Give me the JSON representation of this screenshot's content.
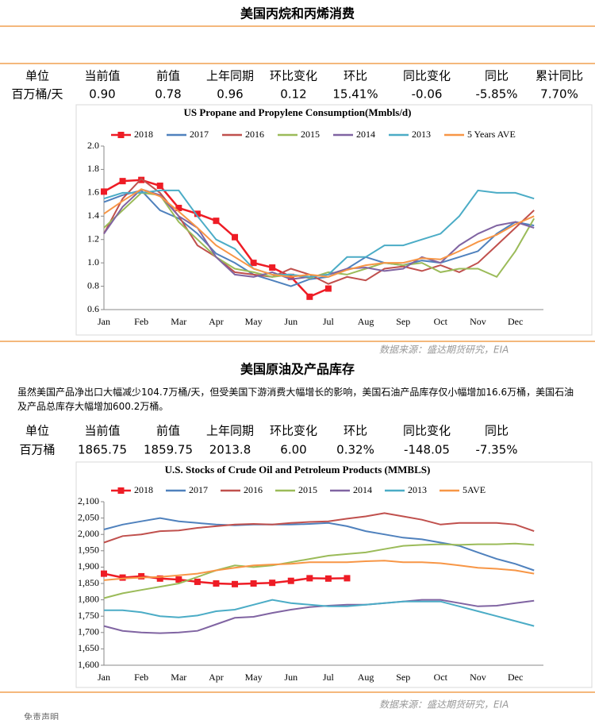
{
  "section1": {
    "title": "美国丙烷和丙烯消费",
    "table": {
      "header": [
        "单位",
        "当前值",
        "前值",
        "上年同期",
        "环比变化",
        "环比",
        "同比变化",
        "同比",
        "累计同比"
      ],
      "row": [
        "百万桶/天",
        "0.90",
        "0.78",
        "0.96",
        "0.12",
        "15.41%",
        "-0.06",
        "-5.85%",
        "7.70%"
      ]
    },
    "source": "数据来源：盛达期货研究，EIA"
  },
  "section2": {
    "title": "美国原油及产品库存",
    "text": "虽然美国产品净出口大幅减少104.7万桶/天，但受美国下游消费大幅增长的影响，美国石油产品库存仅小幅增加16.6万桶，美国石油及产品总库存大幅增加600.2万桶。",
    "table": {
      "header": [
        "单位",
        "当前值",
        "前值",
        "上年同期",
        "环比变化",
        "环比",
        "同比变化",
        "同比"
      ],
      "row": [
        "百万桶",
        "1865.75",
        "1859.75",
        "2013.8",
        "6.00",
        "0.32%",
        "-148.05",
        "-7.35%"
      ]
    },
    "source": "数据来源：盛达期货研究，EIA"
  },
  "footer": "免责声明",
  "chart_data": [
    {
      "type": "line",
      "title": "US Propane and Propylene Consumption(Mmbls/d)",
      "categories": [
        "Jan",
        null,
        "Feb",
        null,
        "Mar",
        null,
        "Apr",
        null,
        "May",
        null,
        "Jun",
        null,
        "Jul",
        null,
        "Aug",
        null,
        "Sep",
        null,
        "Oct",
        null,
        "Nov",
        null,
        "Dec",
        null
      ],
      "ylim": [
        0.6,
        2.0
      ],
      "yticks": [
        0.6,
        0.8,
        {
          "value": 1,
          "label": "1.0"
        },
        1.2,
        1.4,
        1.6,
        1.8,
        {
          "value": 2,
          "label": "2.0"
        }
      ],
      "grid": false,
      "series": [
        {
          "name": "2018",
          "color": "#ee1c25",
          "marker": "square",
          "values": [
            1.61,
            1.7,
            1.71,
            1.66,
            1.47,
            1.42,
            1.36,
            1.22,
            1.0,
            0.96,
            0.88,
            0.71,
            0.78,
            null,
            null,
            null,
            null,
            null,
            null,
            null,
            null,
            null,
            null,
            null
          ]
        },
        {
          "name": "2017",
          "color": "#4f81bd",
          "values": [
            1.52,
            1.58,
            1.62,
            1.45,
            1.38,
            1.25,
            1.08,
            1.0,
            0.9,
            0.85,
            0.8,
            0.86,
            0.88,
            0.95,
            1.05,
            1.0,
            0.98,
            1.02,
            1.0,
            1.05,
            1.1,
            1.25,
            1.35,
            1.32
          ]
        },
        {
          "name": "2016",
          "color": "#c0504d",
          "values": [
            1.25,
            1.55,
            1.72,
            1.6,
            1.4,
            1.15,
            1.05,
            0.92,
            0.9,
            0.88,
            0.95,
            0.9,
            0.82,
            0.88,
            0.85,
            0.95,
            0.97,
            0.93,
            0.98,
            0.92,
            1.0,
            1.15,
            1.3,
            1.45
          ]
        },
        {
          "name": "2015",
          "color": "#9bbb59",
          "values": [
            1.3,
            1.45,
            1.6,
            1.58,
            1.35,
            1.2,
            1.05,
            0.95,
            0.92,
            0.88,
            0.9,
            0.87,
            0.92,
            0.9,
            0.95,
            1.0,
            0.98,
            1.0,
            0.92,
            0.95,
            0.95,
            0.88,
            1.1,
            1.38
          ]
        },
        {
          "name": "2014",
          "color": "#8064a2",
          "values": [
            1.25,
            1.48,
            1.63,
            1.58,
            1.4,
            1.3,
            1.05,
            0.9,
            0.88,
            0.92,
            0.86,
            0.88,
            0.9,
            0.95,
            0.96,
            0.93,
            0.95,
            1.05,
            1.0,
            1.15,
            1.25,
            1.32,
            1.35,
            1.3
          ]
        },
        {
          "name": "2013",
          "color": "#4bacc6",
          "values": [
            1.55,
            1.6,
            1.6,
            1.62,
            1.62,
            1.4,
            1.2,
            1.12,
            0.95,
            0.9,
            0.9,
            0.88,
            0.9,
            1.05,
            1.05,
            1.15,
            1.15,
            1.2,
            1.25,
            1.4,
            1.62,
            1.6,
            1.6,
            1.55
          ]
        },
        {
          "name": "5 Years AVE",
          "color": "#f79646",
          "values": [
            1.42,
            1.53,
            1.63,
            1.57,
            1.44,
            1.3,
            1.15,
            1.05,
            0.95,
            0.9,
            0.88,
            0.9,
            0.88,
            0.94,
            0.98,
            1.0,
            1.0,
            1.04,
            1.03,
            1.1,
            1.18,
            1.24,
            1.33,
            1.4
          ]
        }
      ]
    },
    {
      "type": "line",
      "title": "U.S.  Stocks of Crude Oil and Petroleum Products  (MMBLS)",
      "categories": [
        "Jan",
        null,
        "Feb",
        null,
        "Mar",
        null,
        "Apr",
        null,
        "May",
        null,
        "Jun",
        null,
        "Jul",
        null,
        "Aug",
        null,
        "Sep",
        null,
        "Oct",
        null,
        "Nov",
        null,
        "Dec",
        null
      ],
      "ylim": [
        1600,
        2100
      ],
      "yticks": [
        {
          "value": 1600,
          "label": "1,600"
        },
        {
          "value": 1650,
          "label": "1,650"
        },
        {
          "value": 1700,
          "label": "1,700"
        },
        {
          "value": 1750,
          "label": "1,750"
        },
        {
          "value": 1800,
          "label": "1,800"
        },
        {
          "value": 1850,
          "label": "1,850"
        },
        {
          "value": 1900,
          "label": "1,900"
        },
        {
          "value": 1950,
          "label": "1,950"
        },
        {
          "value": 2000,
          "label": "2,000"
        },
        {
          "value": 2050,
          "label": "2,050"
        },
        {
          "value": 2100,
          "label": "2,100"
        }
      ],
      "grid": false,
      "series": [
        {
          "name": "2018",
          "color": "#ee1c25",
          "marker": "square",
          "values": [
            1880,
            1868,
            1872,
            1865,
            1862,
            1855,
            1850,
            1848,
            1850,
            1852,
            1858,
            1866,
            1865,
            1866,
            null,
            null,
            null,
            null,
            null,
            null,
            null,
            null,
            null,
            null
          ]
        },
        {
          "name": "2017",
          "color": "#4f81bd",
          "values": [
            2015,
            2030,
            2040,
            2050,
            2040,
            2035,
            2030,
            2028,
            2030,
            2030,
            2030,
            2032,
            2035,
            2025,
            2010,
            2000,
            1990,
            1985,
            1975,
            1965,
            1945,
            1925,
            1910,
            1890
          ]
        },
        {
          "name": "2016",
          "color": "#c0504d",
          "values": [
            1975,
            1995,
            2000,
            2010,
            2012,
            2020,
            2025,
            2030,
            2032,
            2030,
            2035,
            2038,
            2040,
            2048,
            2055,
            2065,
            2055,
            2045,
            2030,
            2035,
            2035,
            2035,
            2030,
            2010
          ]
        },
        {
          "name": "2015",
          "color": "#9bbb59",
          "values": [
            1805,
            1820,
            1830,
            1840,
            1850,
            1870,
            1890,
            1905,
            1900,
            1905,
            1915,
            1925,
            1935,
            1940,
            1945,
            1955,
            1965,
            1968,
            1970,
            1968,
            1970,
            1970,
            1972,
            1968
          ]
        },
        {
          "name": "2014",
          "color": "#8064a2",
          "values": [
            1720,
            1705,
            1700,
            1698,
            1700,
            1705,
            1725,
            1745,
            1748,
            1760,
            1770,
            1778,
            1782,
            1785,
            1785,
            1790,
            1795,
            1800,
            1800,
            1790,
            1780,
            1782,
            1790,
            1797
          ]
        },
        {
          "name": "2013",
          "color": "#4bacc6",
          "values": [
            1768,
            1768,
            1762,
            1750,
            1746,
            1752,
            1765,
            1770,
            1785,
            1800,
            1790,
            1785,
            1780,
            1780,
            1785,
            1790,
            1795,
            1795,
            1795,
            1780,
            1765,
            1750,
            1735,
            1720
          ]
        },
        {
          "name": "5AVE",
          "color": "#f79646",
          "values": [
            1860,
            1865,
            1868,
            1870,
            1875,
            1880,
            1890,
            1898,
            1905,
            1908,
            1910,
            1915,
            1915,
            1915,
            1918,
            1920,
            1915,
            1915,
            1912,
            1905,
            1898,
            1895,
            1890,
            1880
          ]
        }
      ]
    }
  ]
}
